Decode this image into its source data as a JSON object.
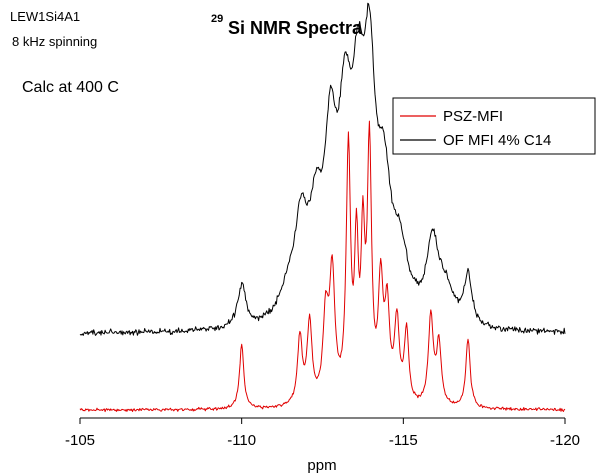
{
  "header": {
    "sample_id": "LEW1Si4A1",
    "spinning": "8 kHz spinning",
    "title_sup": "29",
    "title_main": "Si NMR Spectra",
    "calc_note": "Calc at 400 C"
  },
  "chart_data": {
    "type": "line",
    "title": "29Si NMR Spectra",
    "xlabel": "ppm",
    "ylabel": "",
    "xlim": [
      -105,
      -120
    ],
    "x_reversed": true,
    "xticks": [
      -105,
      -110,
      -115,
      -120
    ],
    "xtick_labels": [
      "-105",
      "-110",
      "-115",
      "-120"
    ],
    "y_axis_shown": false,
    "grid": false,
    "legend_position": "top-right",
    "series": [
      {
        "name": "PSZ-MFI",
        "color": "#e00000",
        "baseline_offset": 0,
        "peaks": [
          {
            "ppm": -110.0,
            "height": 0.4,
            "width": 0.08
          },
          {
            "ppm": -111.8,
            "height": 0.42,
            "width": 0.09
          },
          {
            "ppm": -112.1,
            "height": 0.5,
            "width": 0.09
          },
          {
            "ppm": -112.6,
            "height": 0.52,
            "width": 0.1
          },
          {
            "ppm": -112.8,
            "height": 0.78,
            "width": 0.1
          },
          {
            "ppm": -113.3,
            "height": 1.55,
            "width": 0.08
          },
          {
            "ppm": -113.55,
            "height": 0.9,
            "width": 0.07
          },
          {
            "ppm": -113.75,
            "height": 0.92,
            "width": 0.07
          },
          {
            "ppm": -113.95,
            "height": 1.55,
            "width": 0.08
          },
          {
            "ppm": -114.3,
            "height": 0.7,
            "width": 0.09
          },
          {
            "ppm": -114.5,
            "height": 0.55,
            "width": 0.09
          },
          {
            "ppm": -114.8,
            "height": 0.5,
            "width": 0.09
          },
          {
            "ppm": -115.1,
            "height": 0.45,
            "width": 0.08
          },
          {
            "ppm": -115.85,
            "height": 0.55,
            "width": 0.09
          },
          {
            "ppm": -116.1,
            "height": 0.38,
            "width": 0.09
          },
          {
            "ppm": -117.0,
            "height": 0.43,
            "width": 0.08
          }
        ]
      },
      {
        "name": "OF MFI 4% C14",
        "color": "#000000",
        "baseline_offset": 0.47,
        "peaks": [
          {
            "ppm": -110.0,
            "height": 0.26,
            "width": 0.15
          },
          {
            "ppm": -111.5,
            "height": 0.2,
            "width": 0.35
          },
          {
            "ppm": -111.85,
            "height": 0.5,
            "width": 0.22
          },
          {
            "ppm": -112.3,
            "height": 0.55,
            "width": 0.25
          },
          {
            "ppm": -112.75,
            "height": 0.95,
            "width": 0.22
          },
          {
            "ppm": -113.2,
            "height": 1.1,
            "width": 0.25
          },
          {
            "ppm": -113.6,
            "height": 1.05,
            "width": 0.22
          },
          {
            "ppm": -113.95,
            "height": 1.35,
            "width": 0.22
          },
          {
            "ppm": -114.4,
            "height": 0.72,
            "width": 0.25
          },
          {
            "ppm": -114.9,
            "height": 0.38,
            "width": 0.3
          },
          {
            "ppm": -115.9,
            "height": 0.48,
            "width": 0.22
          },
          {
            "ppm": -116.3,
            "height": 0.2,
            "width": 0.3
          },
          {
            "ppm": -117.0,
            "height": 0.3,
            "width": 0.14
          }
        ]
      }
    ]
  }
}
